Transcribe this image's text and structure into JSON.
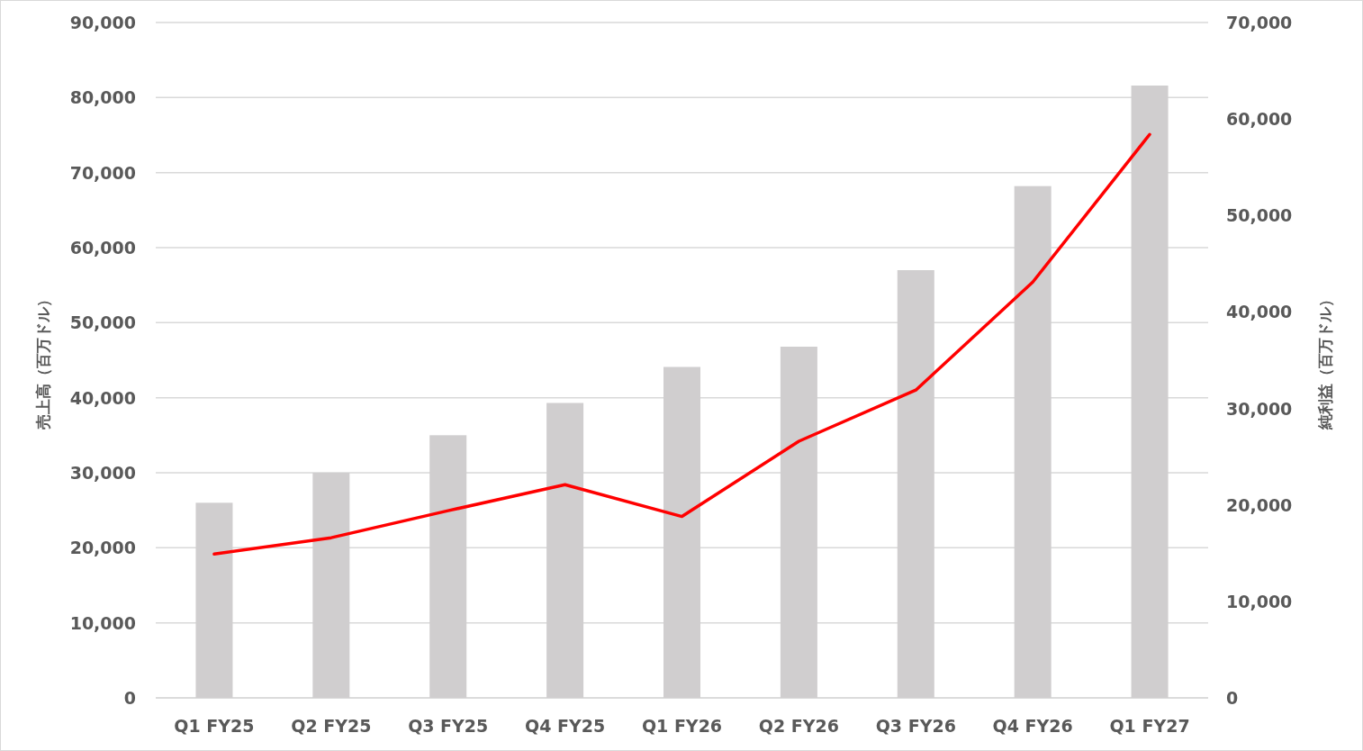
{
  "chart_data": {
    "type": "bar",
    "categories": [
      "Q1 FY25",
      "Q2 FY25",
      "Q3 FY25",
      "Q4 FY25",
      "Q1 FY26",
      "Q2 FY26",
      "Q3 FY26",
      "Q4 FY26",
      "Q1 FY27"
    ],
    "series": [
      {
        "color": "#d0cecf",
        "values": [
          26000,
          30000,
          35000,
          39300,
          44100,
          46800,
          57000,
          68200,
          81600
        ]
      },
      {
        "type": "line",
        "axis": "y2",
        "color": "#ff0000",
        "values": [
          14900,
          16600,
          19400,
          22100,
          18800,
          26600,
          31900,
          43100,
          58400
        ]
      }
    ],
    "ylabel": "売上高（百万ドル）",
    "y2label": "純利益（百万ドル）",
    "ylim": [
      0,
      90000
    ],
    "yticks": [
      0,
      {
        "value": 10000,
        "label": "10,000"
      },
      {
        "value": 20000,
        "label": "20,000"
      },
      {
        "value": 30000,
        "label": "30,000"
      },
      {
        "value": 40000,
        "label": "40,000"
      },
      {
        "value": 50000,
        "label": "50,000"
      },
      {
        "value": 60000,
        "label": "60,000"
      },
      {
        "value": 70000,
        "label": "70,000"
      },
      {
        "value": 80000,
        "label": "80,000"
      },
      {
        "value": 90000,
        "label": "90,000"
      }
    ],
    "y2lim": [
      0,
      70000
    ],
    "y2ticks": [
      0,
      {
        "value": 10000,
        "label": "10,000"
      },
      {
        "value": 20000,
        "label": "20,000"
      },
      {
        "value": 30000,
        "label": "30,000"
      },
      {
        "value": 40000,
        "label": "40,000"
      },
      {
        "value": 50000,
        "label": "50,000"
      },
      {
        "value": 60000,
        "label": "60,000"
      },
      {
        "value": 70000,
        "label": "70,000"
      }
    ],
    "grid": "y",
    "marker": "none",
    "line_style": "solid"
  }
}
